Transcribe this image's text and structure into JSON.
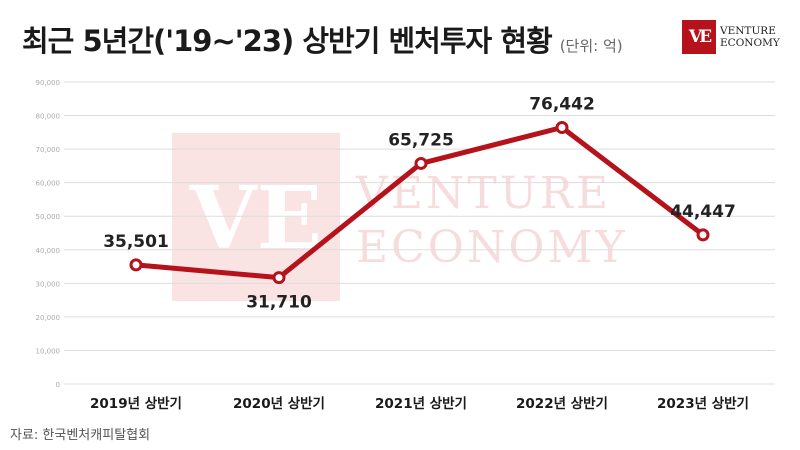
{
  "header": {
    "title": "최근 5년간('19~'23) 상반기 벤처투자 현황",
    "unit": "(단위: 억)"
  },
  "logo": {
    "mark": "VE",
    "line1": "VENTURE",
    "line2": "ECONOMY"
  },
  "watermark": {
    "mark": "VE",
    "line1": "VENTURE",
    "line2": "ECONOMY"
  },
  "source": "자료: 한국벤처캐피탈협회",
  "colors": {
    "line": "#b5121b",
    "grid": "#dddddd",
    "watermark": "#f6dcdc"
  },
  "chart_data": {
    "type": "line",
    "categories": [
      "2019년 상반기",
      "2020년 상반기",
      "2021년 상반기",
      "2022년 상반기",
      "2023년 상반기"
    ],
    "values": [
      35501,
      31710,
      65725,
      76442,
      44447
    ],
    "data_labels": [
      "35,501",
      "31,710",
      "65,725",
      "76,442",
      "44,447"
    ],
    "ylim": [
      0,
      90000
    ],
    "yticks": [
      "0",
      "10,000",
      "20,000",
      "30,000",
      "40,000",
      "50,000",
      "60,000",
      "70,000",
      "80,000",
      "90,000"
    ],
    "grid": true,
    "marker": "hollow-circle",
    "title": "",
    "xlabel": "",
    "ylabel": ""
  }
}
